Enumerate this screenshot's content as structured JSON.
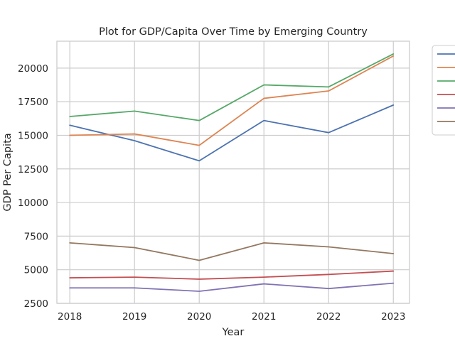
{
  "chart_data": {
    "type": "line",
    "title": "Plot for GDP/Capita Over Time by Emerging Country",
    "xlabel": "Year",
    "ylabel": "GDP Per Capita",
    "x": [
      2018,
      2019,
      2020,
      2021,
      2022,
      2023
    ],
    "xlim": [
      2017.8,
      2023.25
    ],
    "ylim": [
      2500,
      22000
    ],
    "yticks": [
      2500,
      5000,
      7500,
      10000,
      12500,
      15000,
      17500,
      20000
    ],
    "grid": true,
    "legend": "outside-top-right",
    "series": [
      {
        "name": "",
        "color": "#4c72b0",
        "values": [
          15750,
          14600,
          13100,
          16100,
          15200,
          17250
        ]
      },
      {
        "name": "",
        "color": "#dd8452",
        "values": [
          15000,
          15100,
          14250,
          17750,
          18300,
          20900
        ]
      },
      {
        "name": "",
        "color": "#55a868",
        "values": [
          16400,
          16800,
          16100,
          18750,
          18600,
          21050
        ]
      },
      {
        "name": "",
        "color": "#c44e52",
        "values": [
          4400,
          4450,
          4300,
          4450,
          4650,
          4900
        ]
      },
      {
        "name": "",
        "color": "#8172b3",
        "values": [
          3650,
          3650,
          3400,
          3950,
          3600,
          4000
        ]
      },
      {
        "name": "",
        "color": "#937860",
        "values": [
          7000,
          6650,
          5700,
          7000,
          6700,
          6200
        ]
      }
    ]
  }
}
